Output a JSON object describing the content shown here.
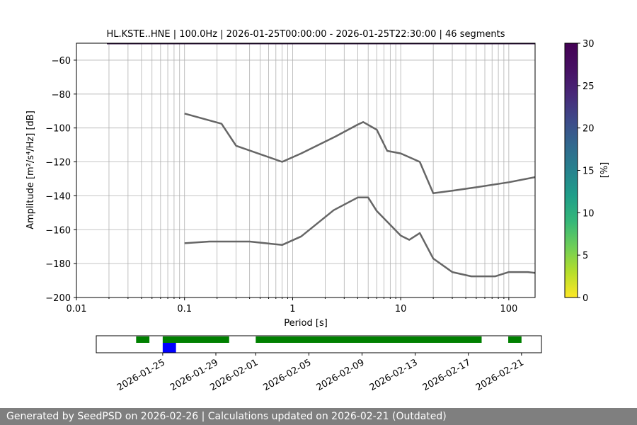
{
  "chart_data": [
    {
      "type": "line",
      "title": "HL.KSTE..HNE | 100.0Hz | 2026-01-25T00:00:00 - 2026-01-25T22:30:00 | 46 segments",
      "xlabel": "Period [s]",
      "ylabel": "Amplitude [m²/s⁴/Hz] [dB]",
      "xscale": "log",
      "xlim": [
        0.01,
        175
      ],
      "ylim": [
        -200,
        -50
      ],
      "xticks": [
        0.01,
        0.1,
        1,
        10,
        100
      ],
      "xtick_labels": [
        "0.01",
        "0.1",
        "1",
        "10",
        "100"
      ],
      "yticks": [
        -200,
        -180,
        -160,
        -140,
        -120,
        -100,
        -80,
        -60
      ],
      "ytick_labels": [
        "−200",
        "−180",
        "−160",
        "−140",
        "−120",
        "−100",
        "−80",
        "−60"
      ],
      "grid": true,
      "series": [
        {
          "color": "#666666",
          "x": [
            0.1,
            0.22,
            0.3,
            0.8,
            1.2,
            2.5,
            4.0,
            4.5,
            6.0,
            7.5,
            10,
            15,
            20,
            30,
            50,
            100,
            175
          ],
          "y": [
            -91.5,
            -97.5,
            -110.5,
            -120,
            -115,
            -105,
            -98,
            -96.5,
            -101,
            -113.5,
            -115,
            -120,
            -138.5,
            -137,
            -135,
            -132,
            -129
          ]
        },
        {
          "color": "#666666",
          "x": [
            0.1,
            0.17,
            0.4,
            0.8,
            1.2,
            2.4,
            4.0,
            5.0,
            6.0,
            10,
            12,
            15,
            20,
            30,
            45,
            75,
            100,
            150,
            175
          ],
          "y": [
            -168,
            -167,
            -167,
            -169,
            -164,
            -148.5,
            -141,
            -141,
            -149,
            -163.5,
            -166,
            -162,
            -177,
            -185,
            -187.5,
            -187.5,
            -185,
            -185,
            -185.5
          ]
        }
      ],
      "colorbar": {
        "label": "[%]",
        "min": 0,
        "max": 30,
        "ticks": [
          0,
          5,
          10,
          15,
          20,
          25,
          30
        ],
        "colormap": "viridis_r"
      }
    },
    {
      "type": "timeline",
      "date_ticks": [
        "2026-01-25",
        "2026-01-29",
        "2026-02-01",
        "2026-02-05",
        "2026-02-09",
        "2026-02-13",
        "2026-02-17",
        "2026-02-21"
      ],
      "available_color": "#008000",
      "selected_color": "#0000ff",
      "available_ranges": [
        [
          "2026-01-23",
          "2026-01-24"
        ],
        [
          "2026-01-25",
          "2026-01-30"
        ],
        [
          "2026-02-01",
          "2026-02-18"
        ],
        [
          "2026-02-20",
          "2026-02-21"
        ]
      ],
      "selected_range": [
        "2026-01-25",
        "2026-01-26"
      ]
    }
  ],
  "footer": {
    "text": "Generated by SeedPSD on 2026-02-26 | Calculations updated on 2026-02-21 (Outdated)"
  }
}
